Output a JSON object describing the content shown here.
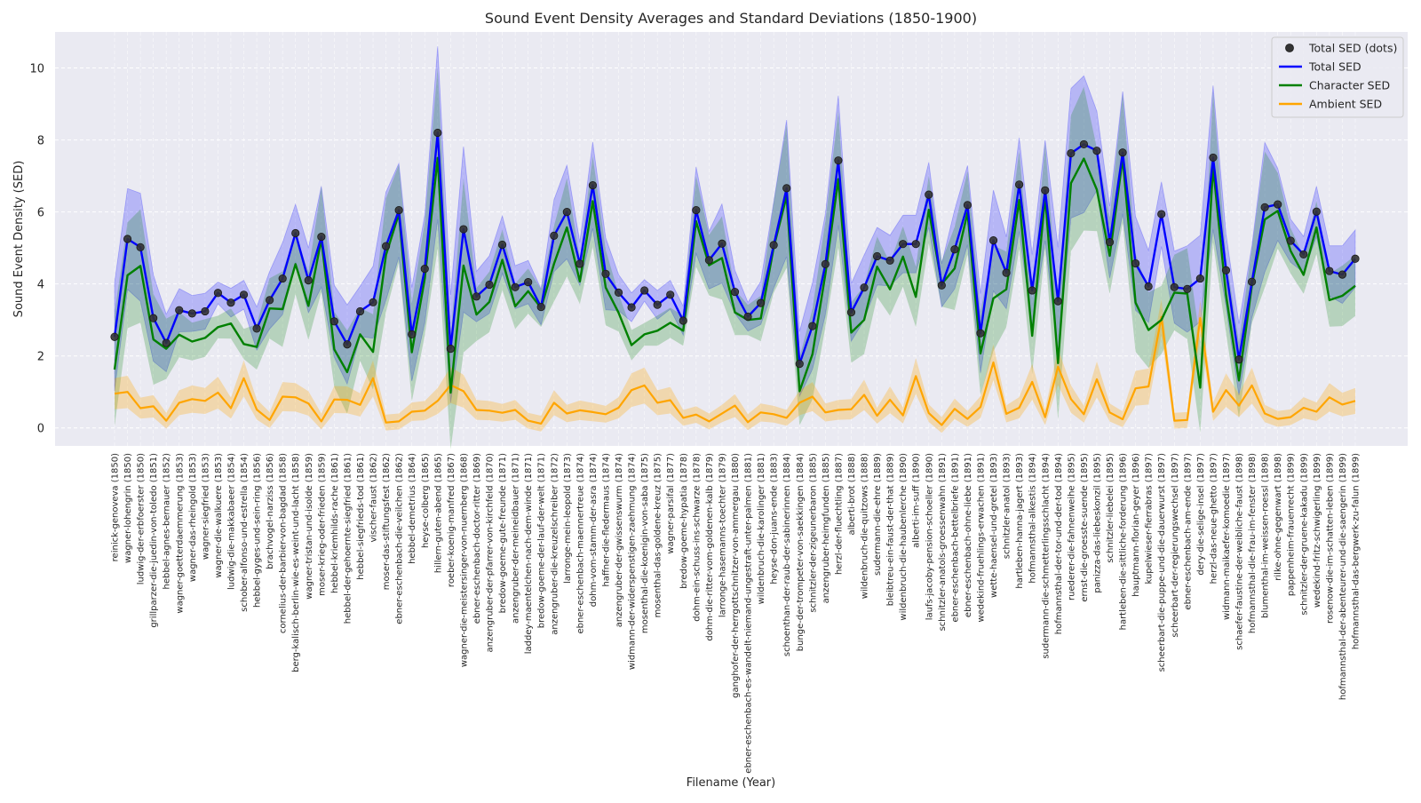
{
  "chart_data": {
    "type": "line",
    "title": "Sound Event Density Averages and Standard Deviations (1850-1900)",
    "xlabel": "Filename (Year)",
    "ylabel": "Sound Event Density (SED)",
    "ylim": [
      -0.5,
      11
    ],
    "yticks": [
      0,
      2,
      4,
      6,
      8,
      10
    ],
    "grid": true,
    "legend_position": "top-right",
    "colors": {
      "plot_background": "#eaeaf2",
      "grid": "#ffffff",
      "dots": "#333333",
      "total": "#0000ff",
      "character": "#008000",
      "ambient": "#ffa500"
    },
    "categories": [
      "reinick-genoveva (1850)",
      "wagner-lohengrin (1850)",
      "ludwig-der-erbfoerster (1850)",
      "grillparzer-die-juedin-von-toledo (1851)",
      "hebbel-agnes-bernauer (1852)",
      "wagner-goetterdaemmerung (1853)",
      "wagner-das-rheingold (1853)",
      "wagner-siegfried (1853)",
      "wagner-die-walkuere (1853)",
      "ludwig-die-makkabaeer (1854)",
      "schober-alfonso-und-estrella (1854)",
      "hebbel-gyges-und-sein-ring (1856)",
      "brachvogel-narziss (1856)",
      "cornelius-der-barbier-von-bagdad (1858)",
      "berg-kalisch-berlin-wie-es-weint-und-lacht (1858)",
      "wagner-tristan-und-isolde (1859)",
      "moser-krieg-oder-frieden (1859)",
      "hebbel-kriemhilds-rache (1861)",
      "hebbel-der-gehoernte-siegfried (1861)",
      "hebbel-siegfrieds-tod (1861)",
      "vischer-faust (1862)",
      "moser-das-stiftungsfest (1862)",
      "ebner-eschenbach-die-veilchen (1862)",
      "hebbel-demetrius (1864)",
      "heyse-colberg (1865)",
      "hillern-guten-abend (1865)",
      "roeber-koenig-manfred (1867)",
      "wagner-die-meistersinger-von-nuernberg (1868)",
      "ebner-eschenbach-doctor-ritter (1869)",
      "anzengruber-der-pfarrer-von-kirchfeld (1870)",
      "bredow-goeme-gute-freunde (1871)",
      "anzengruber-der-meineidbauer (1871)",
      "laddey-maentelchen-nach-dem-winde (1871)",
      "bredow-goeme-der-lauf-der-welt (1871)",
      "anzengruber-die-kreuzelschreiber (1872)",
      "larronge-mein-leopold (1873)",
      "ebner-eschenbach-maennertreue (1874)",
      "dohm-vom-stamm-der-asra (1874)",
      "haffner-die-fledermaus (1874)",
      "anzengruber-der-gwissenswurm (1874)",
      "widmann-der-widerspenstigen-zaehmung (1874)",
      "mosenthal-die-koenigin-von-saba (1875)",
      "mosenthal-das-goldene-kreuz (1875)",
      "wagner-parsifal (1877)",
      "bredow-goeme-hypatia (1878)",
      "dohm-ein-schuss-ins-schwarze (1878)",
      "dohm-die-ritter-vom-goldenen-kalb (1879)",
      "larronge-hasemanns-toechter (1879)",
      "ganghofer-der-herrgottschnitzer-von-ammergau (1880)",
      "ebner-eschenbach-es-wandelt-niemand-ungestraft-unter-palmen (1881)",
      "wildenbruch-die-karolinger (1881)",
      "heyse-don-juans-ende (1883)",
      "schoenthan-der-raub-der-sabinerinnen (1884)",
      "bunge-der-trompeter-von-saekkingen (1884)",
      "schnitzler-der-zigeunerbaron (1885)",
      "anzengruber-heimgfunden (1885)",
      "herzl-der-fluechtling (1887)",
      "alberti-brot (1888)",
      "wildenbruch-die-quitzows (1888)",
      "sudermann-die-ehre (1889)",
      "bleibtreu-ein-faust-der-that (1889)",
      "wildenbruch-die-haubenlerche (1890)",
      "alberti-im-suff (1890)",
      "laufs-jacoby-pension-schoeller (1890)",
      "schnitzler-anatols-groessenwahn (1891)",
      "ebner-eschenbach-bettelbriefe (1891)",
      "ebner-eschenbach-ohne-liebe (1891)",
      "wedekind-fruehlings-erwachen (1891)",
      "wette-haensel-und-gretel (1893)",
      "schnitzler-anatol (1893)",
      "hartleben-hanna-jagert (1893)",
      "hofmannsthal-alkestis (1894)",
      "sudermann-die-schmetterlingsschlacht (1894)",
      "hofmannsthal-der-tor-und-der-tod (1894)",
      "ruederer-die-fahnenweihe (1895)",
      "ernst-die-groesste-suende (1895)",
      "panizza-das-liebeskonzil (1895)",
      "schnitzler-liebelei (1895)",
      "hartleben-die-sittliche-forderung (1896)",
      "hauptmann-florian-geyer (1896)",
      "kupelwieser-fierrabras (1897)",
      "scheerbart-die-puppe-und-die-dauerwurst (1897)",
      "scheerbart-der-regierungswechsel (1897)",
      "ebner-eschenbach-am-ende (1897)",
      "dery-die-selige-insel (1897)",
      "herzl-das-neue-ghetto (1897)",
      "widmann-maikaefer-komoedie (1897)",
      "schaefer-faustine-der-weibliche-faust (1898)",
      "hofmannsthal-die-frau-im-fenster (1898)",
      "blumenthal-im-weissen-roessl (1898)",
      "rilke-ohne-gegenwart (1898)",
      "pappenheim-frauenrecht (1899)",
      "schnitzler-der-gruene-kakadu (1899)",
      "wedekind-fritz-schwigerling (1899)",
      "rosenow-die-im-schatten-leben (1899)",
      "hofmannsthal-der-abenteurer-und-die-saengerin (1899)",
      "hofmannsthal-das-bergwerk-zu-falun (1899)"
    ],
    "series": [
      {
        "name": "Total SED (dots)",
        "style": "dots",
        "values": [
          2.53,
          5.25,
          5.02,
          3.05,
          2.36,
          3.27,
          3.18,
          3.24,
          3.75,
          3.48,
          3.7,
          2.76,
          3.55,
          4.15,
          5.41,
          4.1,
          5.31,
          2.96,
          2.32,
          3.24,
          3.49,
          5.05,
          6.05,
          2.6,
          4.42,
          8.2,
          2.2,
          5.52,
          3.65,
          3.98,
          5.09,
          3.91,
          4.05,
          3.36,
          5.34,
          6.0,
          4.56,
          6.74,
          4.28,
          3.76,
          3.35,
          3.82,
          3.42,
          3.7,
          2.98,
          6.05,
          4.66,
          5.12,
          3.78,
          3.09,
          3.47,
          5.08,
          6.66,
          1.78,
          2.83,
          4.55,
          7.43,
          3.21,
          3.9,
          4.77,
          4.65,
          5.11,
          5.11,
          6.48,
          3.96,
          4.96,
          6.19,
          2.63,
          5.21,
          4.31,
          6.76,
          3.82,
          6.6,
          3.52,
          7.63,
          7.88,
          7.7,
          5.16,
          7.65,
          4.57,
          3.93,
          5.94,
          3.91,
          3.86,
          4.15,
          7.51,
          4.38,
          1.9,
          4.06,
          6.13,
          6.21,
          5.2,
          4.82,
          6.01,
          4.36,
          4.26,
          4.7
        ]
      },
      {
        "name": "Total SED",
        "values": [
          2.53,
          5.25,
          5.02,
          3.05,
          2.36,
          3.27,
          3.18,
          3.24,
          3.75,
          3.48,
          3.7,
          2.76,
          3.55,
          4.15,
          5.41,
          4.1,
          5.31,
          2.96,
          2.32,
          3.24,
          3.49,
          5.05,
          6.05,
          2.6,
          4.42,
          8.2,
          2.2,
          5.52,
          3.65,
          3.98,
          5.09,
          3.91,
          4.05,
          3.36,
          5.34,
          6.0,
          4.56,
          6.74,
          4.28,
          3.76,
          3.35,
          3.82,
          3.42,
          3.7,
          2.98,
          6.05,
          4.66,
          5.12,
          3.78,
          3.09,
          3.47,
          5.08,
          6.66,
          1.78,
          2.83,
          4.55,
          7.43,
          3.21,
          3.9,
          4.77,
          4.65,
          5.11,
          5.11,
          6.48,
          3.96,
          4.96,
          6.19,
          2.63,
          5.21,
          4.31,
          6.76,
          3.82,
          6.6,
          3.52,
          7.63,
          7.88,
          7.7,
          5.16,
          7.65,
          4.57,
          3.93,
          5.94,
          3.91,
          3.86,
          4.15,
          7.51,
          4.38,
          1.9,
          4.06,
          6.13,
          6.21,
          5.2,
          4.82,
          6.01,
          4.36,
          4.26,
          4.7
        ],
        "std": [
          1.5,
          1.4,
          1.5,
          1.2,
          0.8,
          0.6,
          0.5,
          0.5,
          0.3,
          0.4,
          0.4,
          0.6,
          0.8,
          1.0,
          0.8,
          0.9,
          1.4,
          1.0,
          1.1,
          0.7,
          1.0,
          1.5,
          1.3,
          1.3,
          1.5,
          2.4,
          1.5,
          2.3,
          0.7,
          0.8,
          0.8,
          0.6,
          0.6,
          0.5,
          1.0,
          1.3,
          0.6,
          1.2,
          1.0,
          0.5,
          0.4,
          0.3,
          0.4,
          0.4,
          0.4,
          1.2,
          0.8,
          1.1,
          0.6,
          0.4,
          0.6,
          1.2,
          1.9,
          0.9,
          1.2,
          1.4,
          1.8,
          0.8,
          0.9,
          0.8,
          0.7,
          0.8,
          0.8,
          0.9,
          0.6,
          1.1,
          1.1,
          1.1,
          1.4,
          1.0,
          1.3,
          1.0,
          1.4,
          1.5,
          1.8,
          1.9,
          1.1,
          1.0,
          1.7,
          1.3,
          1.0,
          0.9,
          1.0,
          1.2,
          1.2,
          2.0,
          1.0,
          1.0,
          1.0,
          1.8,
          1.0,
          0.6,
          0.5,
          0.7,
          0.7,
          0.8,
          0.8
        ]
      },
      {
        "name": "Character SED",
        "values": [
          1.62,
          4.24,
          4.5,
          2.46,
          2.2,
          2.59,
          2.4,
          2.5,
          2.8,
          2.9,
          2.33,
          2.25,
          3.32,
          3.3,
          4.55,
          3.39,
          5.24,
          2.18,
          1.55,
          2.6,
          2.11,
          4.8,
          5.95,
          2.1,
          4.15,
          7.5,
          0.98,
          4.51,
          3.15,
          3.5,
          4.67,
          3.38,
          3.8,
          3.33,
          4.56,
          5.57,
          4.07,
          6.3,
          3.9,
          3.2,
          2.3,
          2.6,
          2.7,
          2.92,
          2.7,
          5.74,
          4.52,
          4.72,
          3.21,
          3.0,
          3.04,
          5.02,
          6.44,
          1.02,
          2.05,
          4.28,
          6.91,
          2.65,
          3.0,
          4.48,
          3.85,
          4.76,
          3.64,
          6.06,
          4.0,
          4.43,
          5.98,
          2.07,
          3.6,
          3.85,
          6.33,
          2.56,
          6.44,
          1.8,
          6.8,
          7.48,
          6.62,
          4.78,
          7.49,
          3.48,
          2.72,
          3.0,
          3.76,
          3.73,
          1.12,
          7.25,
          3.68,
          1.32,
          3.96,
          5.79,
          6.03,
          4.92,
          4.25,
          5.57,
          3.55,
          3.67,
          3.95
        ]
      },
      {
        "name": "Ambient SED",
        "values": [
          0.95,
          1.0,
          0.55,
          0.6,
          0.2,
          0.7,
          0.8,
          0.75,
          0.98,
          0.55,
          1.38,
          0.51,
          0.22,
          0.87,
          0.85,
          0.68,
          0.18,
          0.79,
          0.78,
          0.64,
          1.38,
          0.15,
          0.18,
          0.45,
          0.48,
          0.75,
          1.19,
          1.02,
          0.5,
          0.48,
          0.42,
          0.5,
          0.2,
          0.12,
          0.7,
          0.4,
          0.49,
          0.44,
          0.38,
          0.56,
          1.05,
          1.18,
          0.7,
          0.77,
          0.28,
          0.37,
          0.18,
          0.4,
          0.62,
          0.16,
          0.43,
          0.38,
          0.28,
          0.7,
          0.87,
          0.43,
          0.5,
          0.52,
          0.92,
          0.34,
          0.78,
          0.35,
          1.44,
          0.41,
          0.08,
          0.53,
          0.25,
          0.58,
          1.82,
          0.39,
          0.56,
          1.28,
          0.3,
          1.7,
          0.8,
          0.38,
          1.35,
          0.43,
          0.24,
          1.1,
          1.15,
          3.08,
          0.2,
          0.22,
          3.05,
          0.45,
          1.05,
          0.62,
          1.18,
          0.4,
          0.25,
          0.3,
          0.56,
          0.45,
          0.85,
          0.65,
          0.75
        ]
      }
    ]
  }
}
